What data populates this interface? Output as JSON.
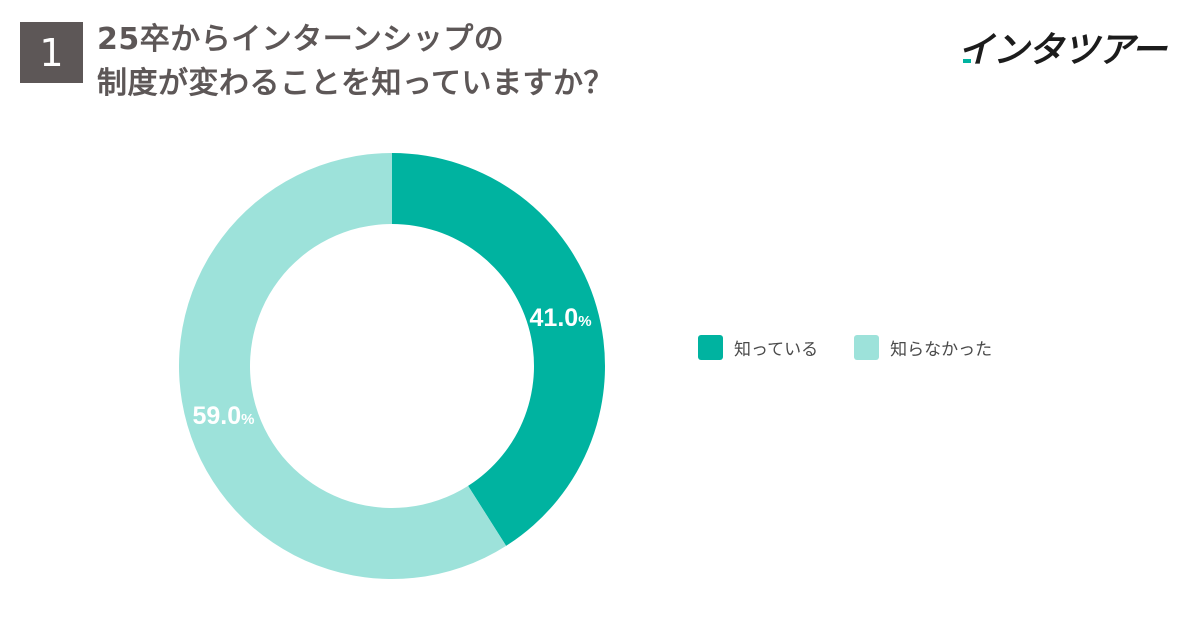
{
  "question_number": "1",
  "title_lines": [
    "25卒からインターンシップの",
    "制度が変わることを知っていますか？"
  ],
  "logo": {
    "text": "インタツアー",
    "accent_color": "#00b3a0"
  },
  "colors": {
    "known": "#00b3a0",
    "unknown": "#9de2da",
    "text_dark": "#5d5757"
  },
  "chart_data": {
    "type": "pie",
    "variant": "donut",
    "title": "25卒からインターンシップの制度が変わることを知っていますか？",
    "series": [
      {
        "name": "知っている",
        "value": 41.0,
        "label": "41.0",
        "unit": "%",
        "color": "#00b3a0"
      },
      {
        "name": "知らなかった",
        "value": 59.0,
        "label": "59.0",
        "unit": "%",
        "color": "#9de2da"
      }
    ],
    "start": "12 o'clock",
    "direction": "clockwise",
    "legend_position": "right"
  }
}
